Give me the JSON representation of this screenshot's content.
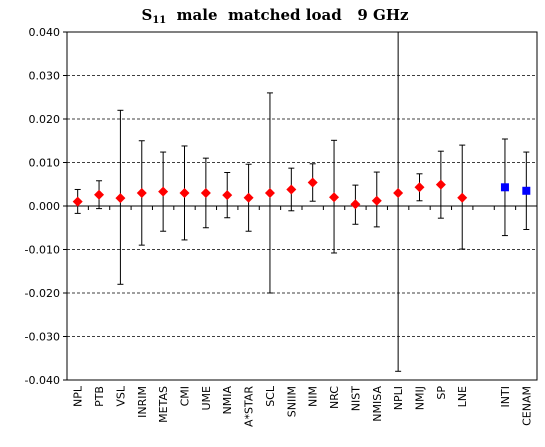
{
  "chart_data": {
    "type": "scatter",
    "title": {
      "prefix": "S",
      "subscript": "11",
      "suffix": "  male  matched load   9 GHz"
    },
    "xlabel": "",
    "ylabel": "",
    "ylim": [
      -0.04,
      0.04
    ],
    "y_ticks": [
      "0.040",
      "0.030",
      "0.020",
      "0.010",
      "0.000",
      "-0.010",
      "-0.020",
      "-0.030",
      "-0.040"
    ],
    "grid": "horizontal-dashed",
    "categories": [
      "NPL",
      "PTB",
      "VSL",
      "INRIM",
      "METAS",
      "CMI",
      "UME",
      "NMIA",
      "A*STAR",
      "SCL",
      "SNIIM",
      "NIM",
      "NRC",
      "NIST",
      "NMISA",
      "NPLI",
      "NMIJ",
      "SP",
      "LNE",
      "",
      "INTI",
      "CENAM"
    ],
    "series": [
      {
        "marker": "diamond",
        "color": "#ff0000",
        "points": [
          {
            "category": "NPL",
            "value": 0.001,
            "low": -0.0017,
            "high": 0.0038
          },
          {
            "category": "PTB",
            "value": 0.0026,
            "low": -0.0006,
            "high": 0.0058
          },
          {
            "category": "VSL",
            "value": 0.0018,
            "low": -0.018,
            "high": 0.022
          },
          {
            "category": "INRIM",
            "value": 0.003,
            "low": -0.009,
            "high": 0.015
          },
          {
            "category": "METAS",
            "value": 0.0033,
            "low": -0.0058,
            "high": 0.0124
          },
          {
            "category": "CMI",
            "value": 0.003,
            "low": -0.0078,
            "high": 0.0138
          },
          {
            "category": "UME",
            "value": 0.003,
            "low": -0.005,
            "high": 0.011
          },
          {
            "category": "NMIA",
            "value": 0.0025,
            "low": -0.0027,
            "high": 0.0077
          },
          {
            "category": "A*STAR",
            "value": 0.0019,
            "low": -0.0058,
            "high": 0.0096
          },
          {
            "category": "SCL",
            "value": 0.003,
            "low": -0.02,
            "high": 0.026
          },
          {
            "category": "SNIIM",
            "value": 0.0038,
            "low": -0.0011,
            "high": 0.0087
          },
          {
            "category": "NIM",
            "value": 0.0054,
            "low": 0.0011,
            "high": 0.0097
          },
          {
            "category": "NRC",
            "value": 0.002,
            "low": -0.0108,
            "high": 0.0151
          },
          {
            "category": "NIST",
            "value": 0.0004,
            "low": -0.0042,
            "high": 0.0048
          },
          {
            "category": "NMISA",
            "value": 0.0012,
            "low": -0.0048,
            "high": 0.0078
          },
          {
            "category": "NPLI",
            "value": 0.003,
            "low": -0.038,
            "high": 0.04
          },
          {
            "category": "NMIJ",
            "value": 0.0043,
            "low": 0.0012,
            "high": 0.0074
          },
          {
            "category": "SP",
            "value": 0.0049,
            "low": -0.0028,
            "high": 0.0126
          },
          {
            "category": "LNE",
            "value": 0.0019,
            "low": -0.0099,
            "high": 0.014
          }
        ]
      },
      {
        "marker": "square",
        "color": "#0000ff",
        "points": [
          {
            "category": "INTI",
            "value": 0.0043,
            "low": -0.0068,
            "high": 0.0154
          },
          {
            "category": "CENAM",
            "value": 0.0035,
            "low": -0.0054,
            "high": 0.0124
          }
        ]
      }
    ]
  }
}
